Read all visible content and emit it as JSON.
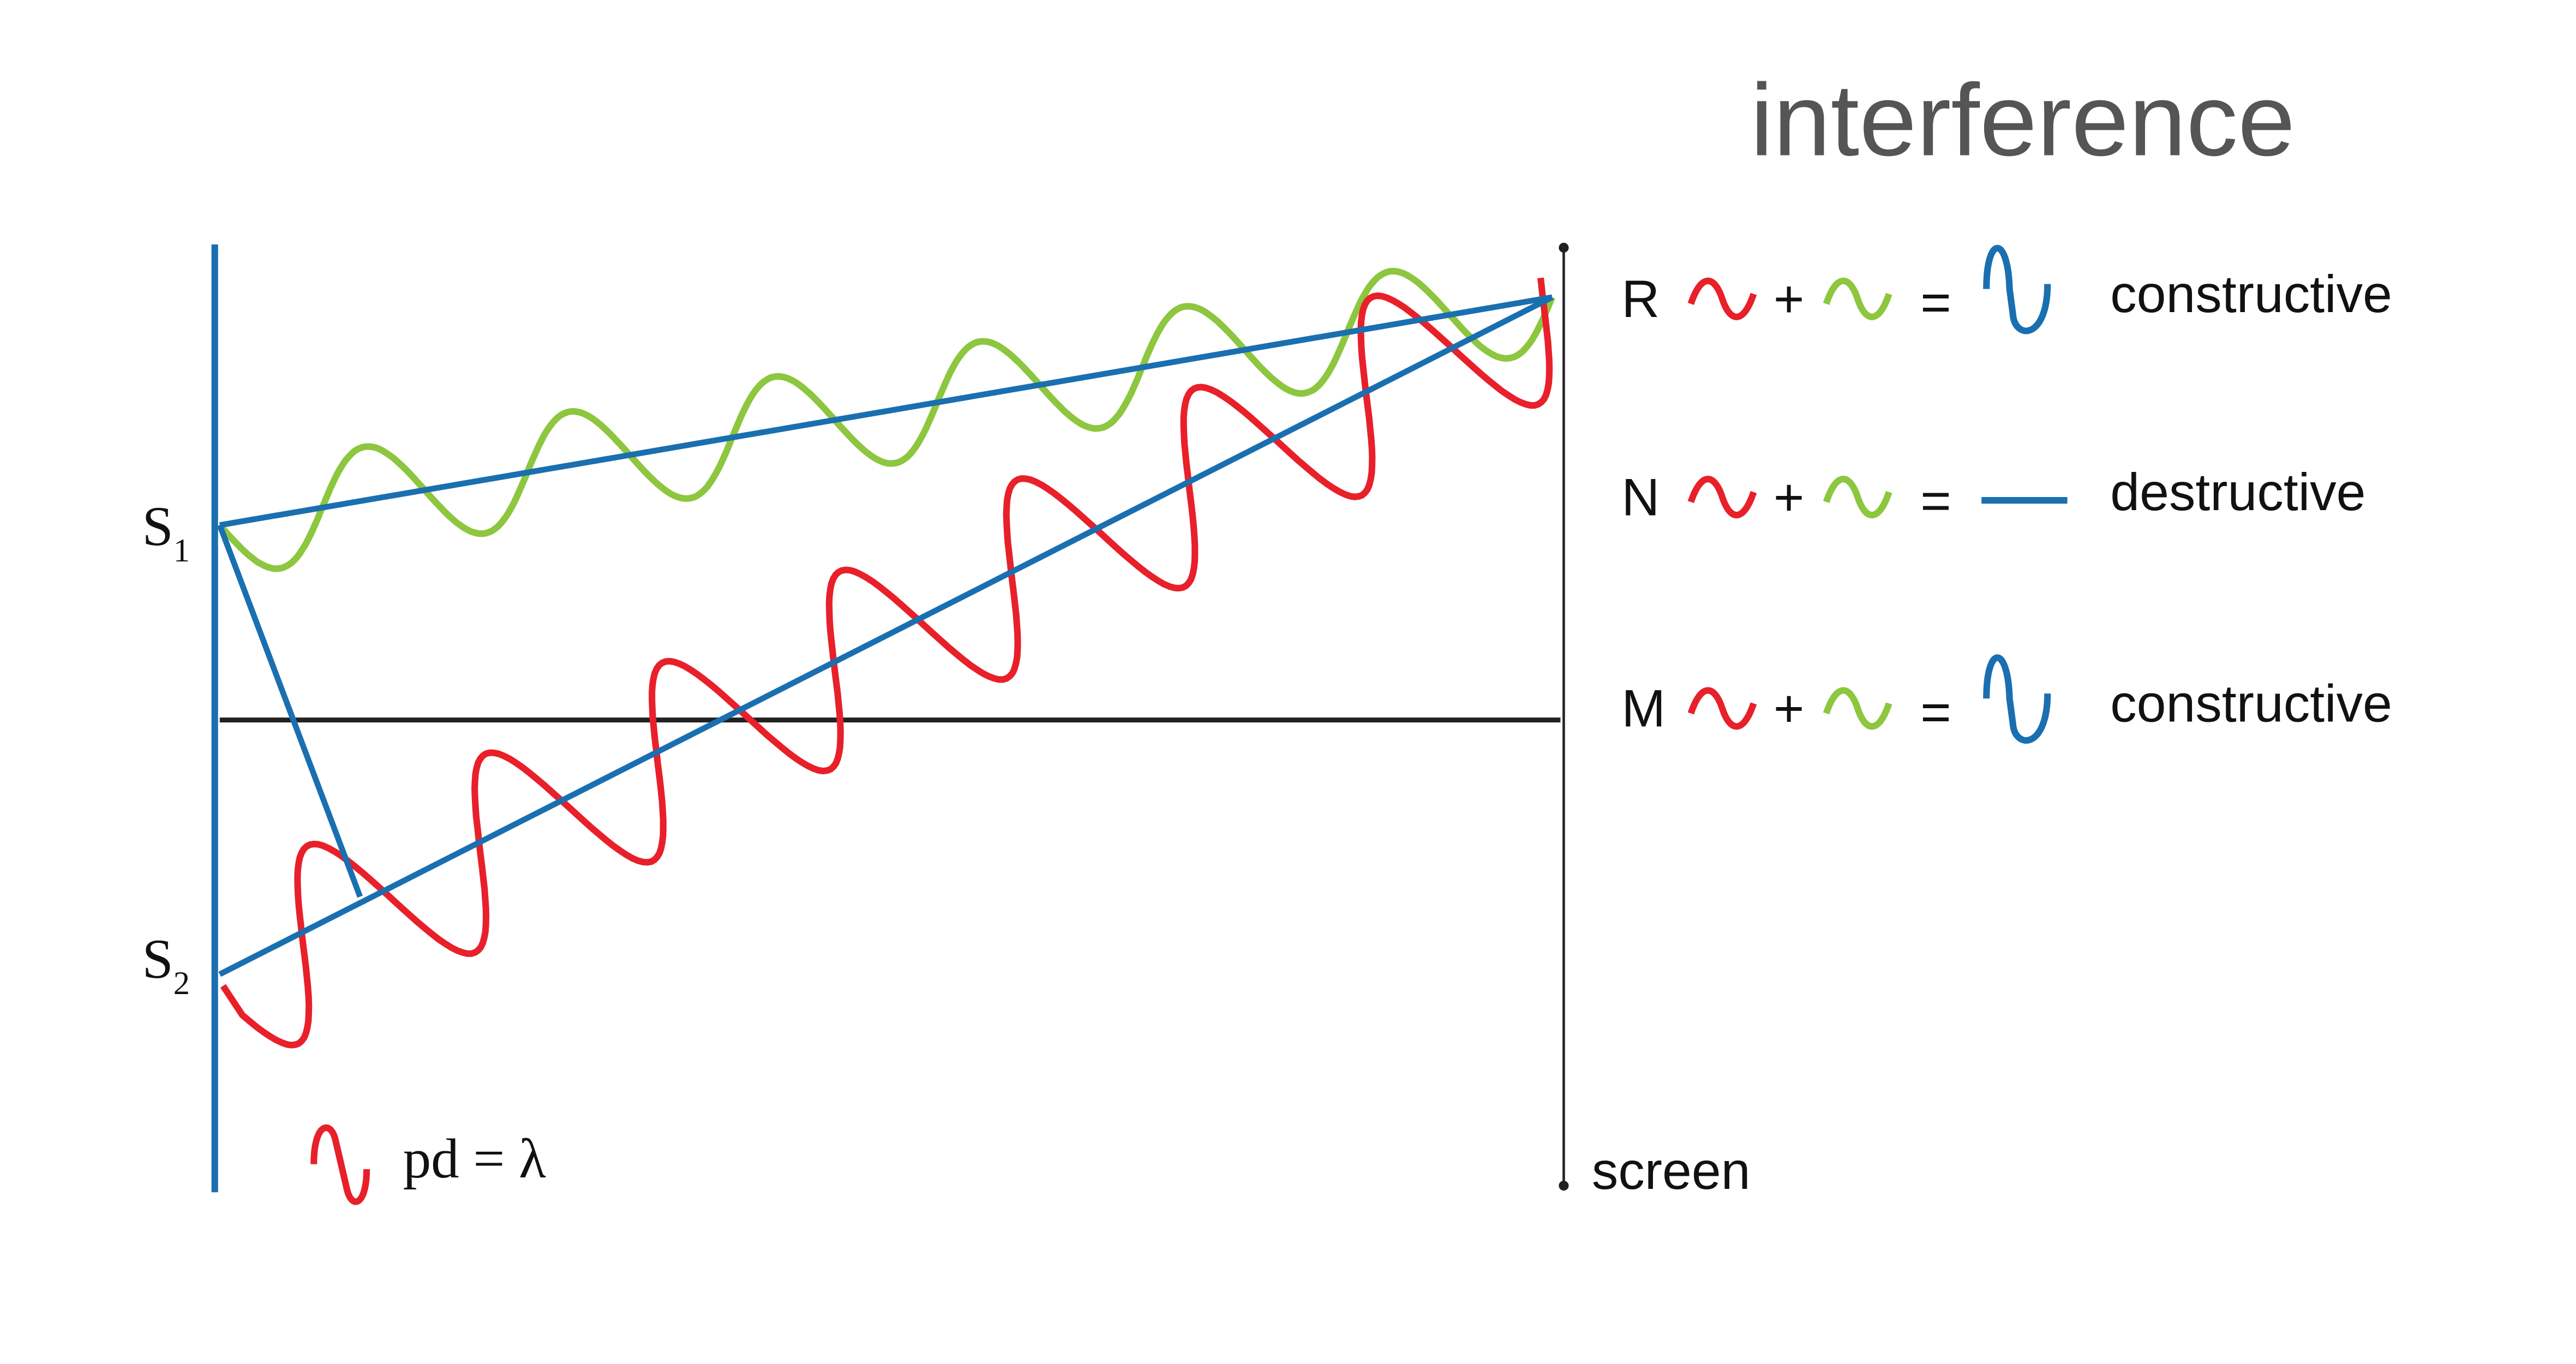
{
  "title": "interference",
  "sources": [
    {
      "letter": "S",
      "subscript": "1"
    },
    {
      "letter": "S",
      "subscript": "2"
    }
  ],
  "rows": [
    {
      "label": "R",
      "plus": "+",
      "equals": "=",
      "result": "constructive"
    },
    {
      "label": "N",
      "plus": "+",
      "equals": "=",
      "result": "destructive"
    },
    {
      "label": "M",
      "plus": "+",
      "equals": "=",
      "result": "constructive"
    }
  ],
  "legend": "pd = λ",
  "screen": "screen"
}
